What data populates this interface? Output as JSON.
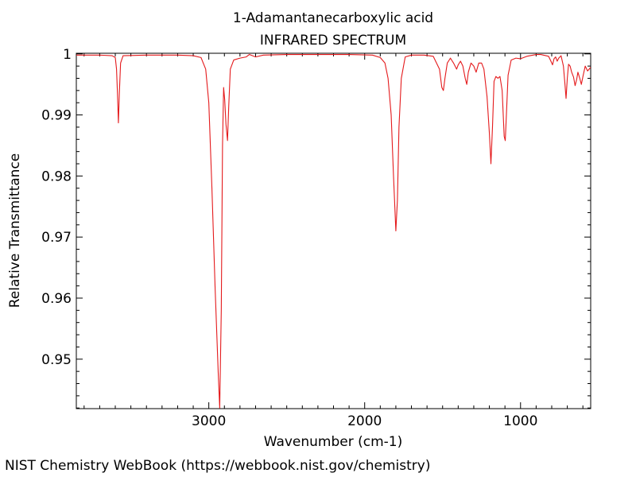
{
  "footer": {
    "credit": "NIST Chemistry WebBook (https://webbook.nist.gov/chemistry)"
  },
  "colors": {
    "line": "#e41a1c",
    "axis": "#000000",
    "background": "#ffffff"
  },
  "chart_data": {
    "type": "line",
    "title": "1-Adamantanecarboxylic acid",
    "subtitle": "INFRARED SPECTRUM",
    "xlabel": "Wavenumber (cm-1)",
    "ylabel": "Relative Transmittance",
    "xlim": [
      3850,
      550
    ],
    "ylim": [
      0.9419,
      1.0001
    ],
    "x_reversed": true,
    "grid": false,
    "x_ticks": [
      3000,
      2000,
      1000
    ],
    "x_tick_labels": [
      "3000",
      "2000",
      "1000"
    ],
    "y_ticks": [
      1,
      0.99,
      0.98,
      0.97,
      0.96,
      0.95
    ],
    "y_tick_labels": [
      "1",
      "0.99",
      "0.98",
      "0.97",
      "0.96",
      "0.95"
    ],
    "series": [
      {
        "color": "#e41a1c",
        "points": [
          [
            3850,
            0.9998
          ],
          [
            3700,
            0.9998
          ],
          [
            3620,
            0.9997
          ],
          [
            3600,
            0.9994
          ],
          [
            3592,
            0.9975
          ],
          [
            3586,
            0.9935
          ],
          [
            3580,
            0.9887
          ],
          [
            3574,
            0.9935
          ],
          [
            3566,
            0.9985
          ],
          [
            3550,
            0.9997
          ],
          [
            3400,
            0.9998
          ],
          [
            3200,
            0.9998
          ],
          [
            3100,
            0.9997
          ],
          [
            3050,
            0.9994
          ],
          [
            3020,
            0.9975
          ],
          [
            3000,
            0.992
          ],
          [
            2980,
            0.978
          ],
          [
            2960,
            0.962
          ],
          [
            2940,
            0.948
          ],
          [
            2930,
            0.942
          ],
          [
            2920,
            0.958
          ],
          [
            2912,
            0.985
          ],
          [
            2905,
            0.9945
          ],
          [
            2898,
            0.9925
          ],
          [
            2890,
            0.9885
          ],
          [
            2880,
            0.9858
          ],
          [
            2872,
            0.9915
          ],
          [
            2862,
            0.9975
          ],
          [
            2840,
            0.999
          ],
          [
            2800,
            0.9993
          ],
          [
            2760,
            0.9995
          ],
          [
            2740,
            0.9999
          ],
          [
            2700,
            0.9995
          ],
          [
            2650,
            0.9998
          ],
          [
            2500,
            0.9999
          ],
          [
            2300,
            0.9999
          ],
          [
            2100,
            0.9999
          ],
          [
            1950,
            0.9998
          ],
          [
            1900,
            0.9994
          ],
          [
            1870,
            0.9985
          ],
          [
            1850,
            0.996
          ],
          [
            1830,
            0.99
          ],
          [
            1815,
            0.98
          ],
          [
            1800,
            0.971
          ],
          [
            1790,
            0.976
          ],
          [
            1780,
            0.988
          ],
          [
            1765,
            0.996
          ],
          [
            1740,
            0.9995
          ],
          [
            1700,
            0.9998
          ],
          [
            1620,
            0.9998
          ],
          [
            1560,
            0.9996
          ],
          [
            1520,
            0.9975
          ],
          [
            1505,
            0.9945
          ],
          [
            1495,
            0.994
          ],
          [
            1485,
            0.996
          ],
          [
            1470,
            0.9985
          ],
          [
            1450,
            0.9993
          ],
          [
            1430,
            0.9985
          ],
          [
            1410,
            0.9975
          ],
          [
            1400,
            0.9982
          ],
          [
            1385,
            0.9988
          ],
          [
            1370,
            0.998
          ],
          [
            1355,
            0.996
          ],
          [
            1345,
            0.995
          ],
          [
            1335,
            0.997
          ],
          [
            1318,
            0.9985
          ],
          [
            1300,
            0.998
          ],
          [
            1285,
            0.997
          ],
          [
            1268,
            0.9985
          ],
          [
            1250,
            0.9985
          ],
          [
            1235,
            0.9975
          ],
          [
            1215,
            0.993
          ],
          [
            1200,
            0.987
          ],
          [
            1190,
            0.982
          ],
          [
            1180,
            0.988
          ],
          [
            1170,
            0.9955
          ],
          [
            1158,
            0.9963
          ],
          [
            1145,
            0.996
          ],
          [
            1132,
            0.9963
          ],
          [
            1118,
            0.994
          ],
          [
            1105,
            0.9865
          ],
          [
            1098,
            0.9858
          ],
          [
            1090,
            0.9905
          ],
          [
            1080,
            0.9965
          ],
          [
            1060,
            0.999
          ],
          [
            1030,
            0.9993
          ],
          [
            1000,
            0.9992
          ],
          [
            960,
            0.9996
          ],
          [
            900,
            0.9999
          ],
          [
            870,
            0.9999
          ],
          [
            820,
            0.9996
          ],
          [
            805,
            0.9988
          ],
          [
            795,
            0.9982
          ],
          [
            785,
            0.9992
          ],
          [
            775,
            0.9995
          ],
          [
            765,
            0.9988
          ],
          [
            755,
            0.9993
          ],
          [
            740,
            0.9997
          ],
          [
            725,
            0.998
          ],
          [
            715,
            0.995
          ],
          [
            708,
            0.9927
          ],
          [
            700,
            0.996
          ],
          [
            692,
            0.9983
          ],
          [
            682,
            0.998
          ],
          [
            672,
            0.997
          ],
          [
            660,
            0.9962
          ],
          [
            650,
            0.9948
          ],
          [
            640,
            0.9958
          ],
          [
            632,
            0.997
          ],
          [
            620,
            0.996
          ],
          [
            610,
            0.995
          ],
          [
            598,
            0.9965
          ],
          [
            585,
            0.998
          ],
          [
            570,
            0.9972
          ],
          [
            560,
            0.9975
          ],
          [
            550,
            0.9978
          ]
        ]
      }
    ]
  }
}
